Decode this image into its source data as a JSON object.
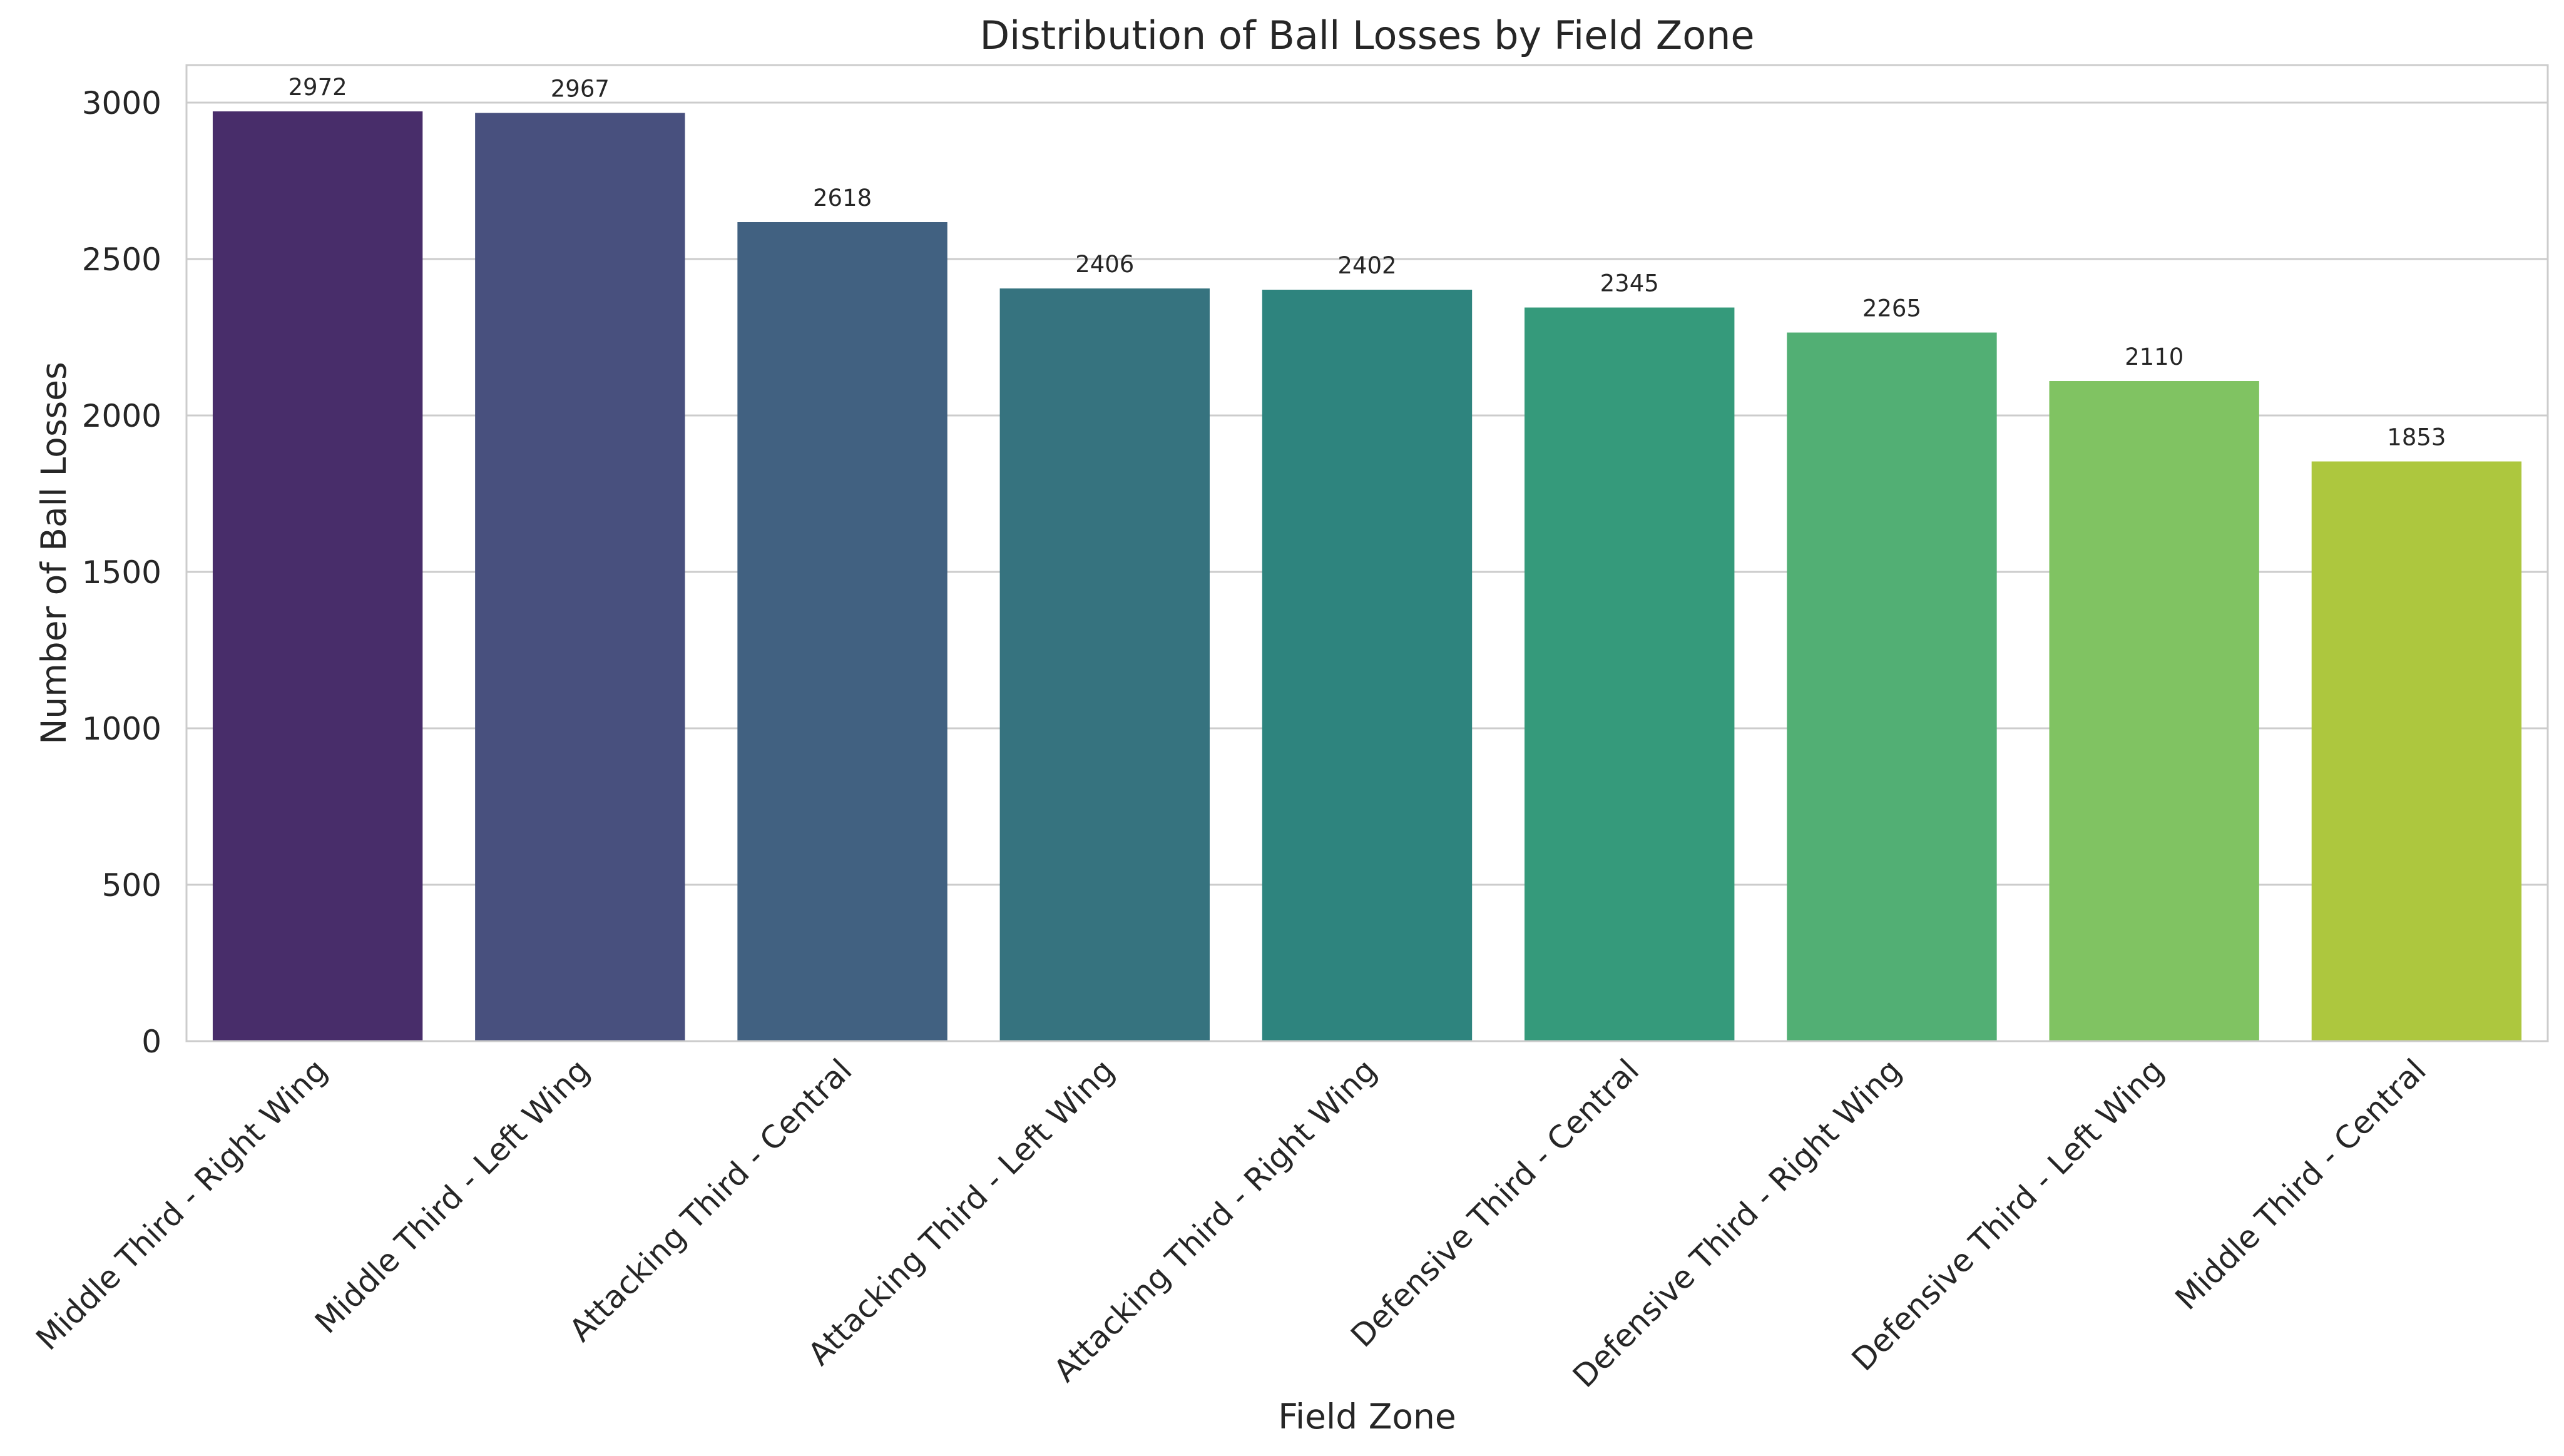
{
  "chart_data": {
    "type": "bar",
    "title": "Distribution of Ball Losses by Field Zone",
    "xlabel": "Field Zone",
    "ylabel": "Number of Ball Losses",
    "ylim": [
      0,
      3120
    ],
    "yticks": [
      0,
      500,
      1000,
      1500,
      2000,
      2500,
      3000
    ],
    "grid": "horizontal",
    "categories": [
      "Middle Third - Right Wing",
      "Middle Third - Left Wing",
      "Attacking Third - Central",
      "Attacking Third - Left Wing",
      "Attacking Third - Right Wing",
      "Defensive Third - Central",
      "Defensive Third - Right Wing",
      "Defensive Third - Left Wing",
      "Middle Third - Central"
    ],
    "values": [
      2972,
      2967,
      2618,
      2406,
      2402,
      2345,
      2265,
      2110,
      1853
    ],
    "colors": [
      "#482d6a",
      "#48507e",
      "#416181",
      "#36737f",
      "#2e847e",
      "#359a7b",
      "#52af74",
      "#80c362",
      "#adc73e"
    ]
  }
}
